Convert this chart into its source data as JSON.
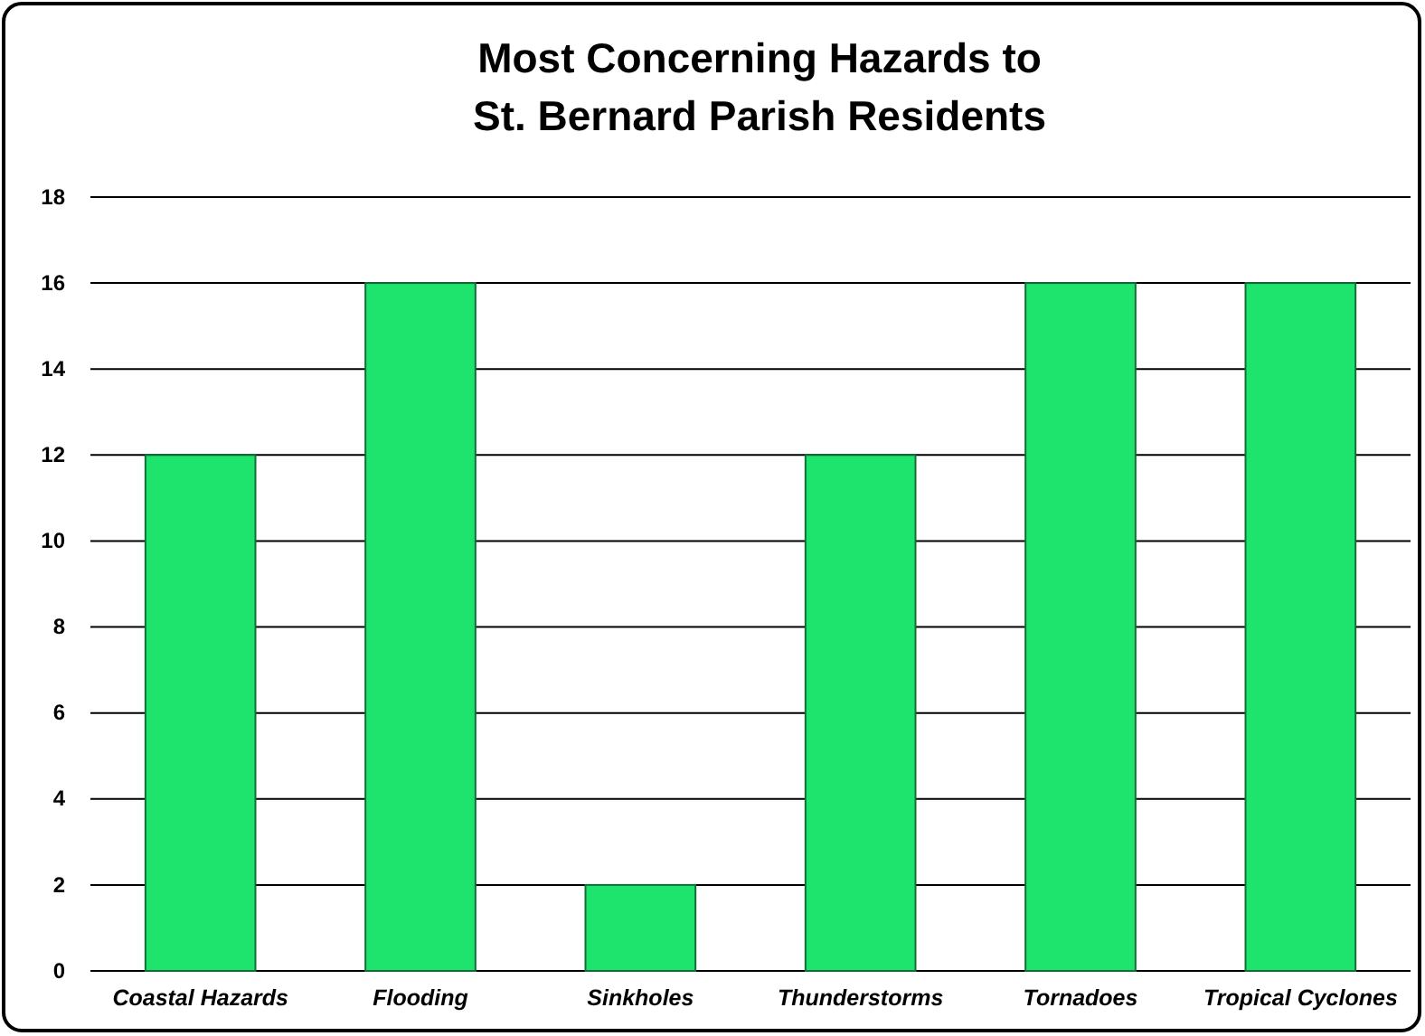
{
  "chart_data": {
    "type": "bar",
    "title": "Most Concerning Hazards to\nSt. Bernard Parish Residents",
    "categories": [
      "Coastal Hazards",
      "Flooding",
      "Sinkholes",
      "Thunderstorms",
      "Tornadoes",
      "Tropical Cyclones"
    ],
    "values": [
      12,
      16,
      2,
      12,
      16,
      16
    ],
    "color": "#1ee46e",
    "ylim": [
      0,
      18
    ],
    "yticks": [
      0,
      2,
      4,
      6,
      8,
      10,
      12,
      14,
      16,
      18
    ],
    "grid": "y"
  }
}
